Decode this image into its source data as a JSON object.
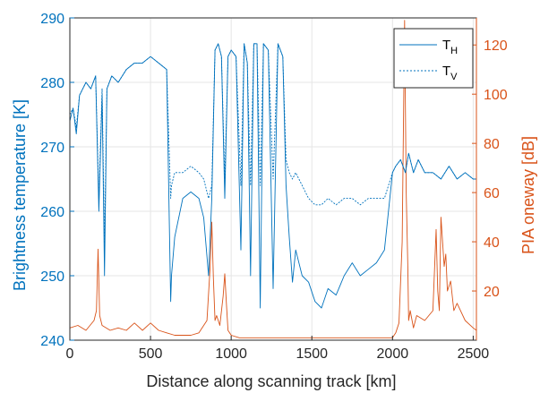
{
  "chart_data": {
    "type": "line",
    "xlabel": "Distance along scanning track [km]",
    "ylabel_left": "Brightness temperature [K]",
    "ylabel_right": "PIA oneway [dB]",
    "xlim": [
      0,
      2520
    ],
    "ylim_left": [
      240,
      290
    ],
    "ylim_right": [
      0,
      131
    ],
    "xticks": [
      0,
      500,
      1000,
      1500,
      2000,
      2500
    ],
    "yticks_left": [
      240,
      250,
      260,
      270,
      280,
      290
    ],
    "yticks_right": [
      20,
      40,
      60,
      80,
      100,
      120
    ],
    "grid": true,
    "legend_position": "top-right",
    "colors": {
      "left_axis": "#0072BD",
      "right_axis": "#D95319",
      "grid": "#e6e6e6",
      "box": "#262626"
    },
    "series": [
      {
        "name": "T_H",
        "legend_main": "T",
        "legend_sub": "H",
        "axis": "left",
        "style": "solid",
        "color": "#0072BD",
        "x": [
          0,
          20,
          40,
          60,
          80,
          100,
          130,
          160,
          180,
          200,
          215,
          230,
          260,
          300,
          350,
          400,
          450,
          500,
          550,
          600,
          625,
          630,
          650,
          700,
          750,
          800,
          830,
          860,
          880,
          900,
          920,
          940,
          960,
          980,
          1000,
          1030,
          1060,
          1080,
          1100,
          1120,
          1140,
          1160,
          1180,
          1200,
          1230,
          1260,
          1290,
          1320,
          1340,
          1360,
          1380,
          1400,
          1440,
          1480,
          1520,
          1560,
          1600,
          1650,
          1700,
          1750,
          1800,
          1850,
          1900,
          1950,
          2000,
          2020,
          2050,
          2080,
          2100,
          2130,
          2160,
          2200,
          2250,
          2300,
          2350,
          2400,
          2450,
          2500,
          2520
        ],
        "y": [
          274,
          276,
          272,
          278,
          279,
          280,
          279,
          281,
          260,
          278,
          250,
          279,
          281,
          280,
          282,
          283,
          283,
          284,
          283,
          282,
          246,
          250,
          256,
          262,
          263,
          262,
          259,
          250,
          262,
          285,
          286,
          284,
          262,
          284,
          285,
          284,
          254,
          286,
          283,
          250,
          286,
          286,
          245,
          286,
          285,
          248,
          286,
          284,
          264,
          256,
          249,
          254,
          250,
          249,
          246,
          245,
          248,
          247,
          250,
          252,
          250,
          251,
          252,
          254,
          266,
          267,
          268,
          266,
          269,
          266,
          268,
          266,
          266,
          265,
          267,
          265,
          266,
          265,
          265
        ]
      },
      {
        "name": "T_V",
        "legend_main": "T",
        "legend_sub": "V",
        "axis": "left",
        "style": "dotted",
        "color": "#0072BD",
        "x": [
          0,
          20,
          40,
          60,
          80,
          100,
          130,
          160,
          180,
          200,
          215,
          230,
          260,
          300,
          350,
          400,
          450,
          500,
          550,
          600,
          625,
          630,
          650,
          700,
          750,
          800,
          830,
          860,
          880,
          900,
          920,
          940,
          960,
          980,
          1000,
          1030,
          1060,
          1080,
          1100,
          1120,
          1140,
          1160,
          1180,
          1200,
          1230,
          1260,
          1290,
          1320,
          1340,
          1360,
          1380,
          1400,
          1440,
          1480,
          1520,
          1560,
          1600,
          1650,
          1700,
          1750,
          1800,
          1850,
          1900,
          1950,
          2000,
          2020,
          2050,
          2080,
          2100,
          2130,
          2160,
          2200,
          2250,
          2300,
          2350,
          2400,
          2450,
          2500,
          2520
        ],
        "y": [
          275,
          276,
          273,
          278,
          279,
          280,
          279,
          281,
          262,
          279,
          255,
          279,
          281,
          280,
          282,
          283,
          283,
          284,
          283,
          282,
          262,
          264,
          266,
          266,
          267,
          266,
          265,
          262,
          264,
          285,
          286,
          284,
          265,
          284,
          285,
          284,
          264,
          286,
          283,
          264,
          286,
          286,
          264,
          286,
          285,
          265,
          286,
          284,
          268,
          266,
          265,
          266,
          264,
          262,
          261,
          261,
          262,
          261,
          262,
          262,
          261,
          262,
          262,
          262,
          266,
          267,
          268,
          266,
          269,
          266,
          268,
          266,
          266,
          265,
          267,
          265,
          266,
          265,
          265
        ]
      },
      {
        "name": "PIA oneway",
        "axis": "right",
        "style": "solid",
        "color": "#D95319",
        "x": [
          0,
          50,
          100,
          150,
          165,
          175,
          185,
          200,
          250,
          300,
          350,
          400,
          450,
          500,
          550,
          600,
          650,
          700,
          750,
          800,
          850,
          870,
          880,
          890,
          900,
          910,
          930,
          950,
          960,
          970,
          980,
          1000,
          1050,
          1100,
          1200,
          1300,
          1400,
          1500,
          1600,
          1700,
          1800,
          1900,
          2000,
          2020,
          2040,
          2060,
          2075,
          2085,
          2095,
          2100,
          2110,
          2130,
          2150,
          2200,
          2250,
          2270,
          2280,
          2290,
          2300,
          2320,
          2330,
          2340,
          2360,
          2380,
          2400,
          2450,
          2500,
          2520
        ],
        "y": [
          5,
          6,
          4,
          8,
          12,
          37,
          10,
          6,
          4,
          5,
          4,
          7,
          4,
          7,
          4,
          3,
          2,
          2,
          2,
          3,
          8,
          30,
          48,
          25,
          8,
          10,
          6,
          18,
          27,
          15,
          4,
          2,
          1,
          1,
          1,
          1,
          1,
          1,
          1,
          1,
          1,
          1,
          1,
          3,
          7,
          40,
          130,
          60,
          30,
          8,
          12,
          5,
          10,
          8,
          12,
          45,
          20,
          12,
          50,
          30,
          35,
          20,
          24,
          12,
          15,
          8,
          5,
          4
        ]
      }
    ]
  }
}
